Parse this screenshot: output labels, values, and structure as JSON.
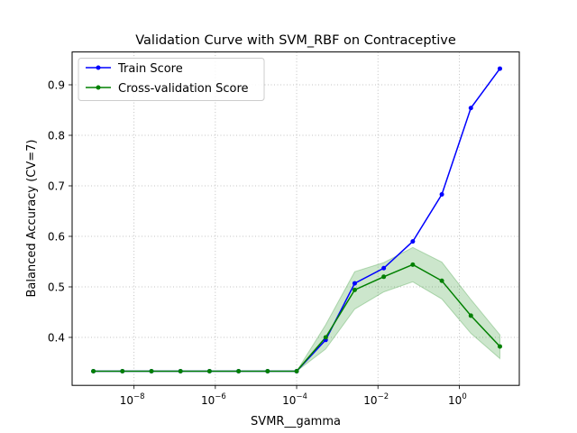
{
  "chart_data": {
    "type": "line",
    "title": "Validation Curve with SVM_RBF on Contraceptive",
    "xlabel": "SVMR__gamma",
    "ylabel": "Balanced Accuracy (CV=7)",
    "xscale": "log",
    "xlim": [
      3e-10,
      30
    ],
    "ylim": [
      0.305,
      0.965
    ],
    "grid": true,
    "grid_style": "dotted",
    "legend_position": "upper left",
    "x_tick_labels": [
      {
        "value": 1e-08,
        "base": "10",
        "exp": "−8"
      },
      {
        "value": 1e-06,
        "base": "10",
        "exp": "−6"
      },
      {
        "value": 0.0001,
        "base": "10",
        "exp": "−4"
      },
      {
        "value": 0.01,
        "base": "10",
        "exp": "−2"
      },
      {
        "value": 1,
        "base": "10",
        "exp": "0"
      }
    ],
    "y_ticks": [
      0.4,
      0.5,
      0.6,
      0.7,
      0.8,
      0.9
    ],
    "y_tick_labels": [
      "0.4",
      "0.5",
      "0.6",
      "0.7",
      "0.8",
      "0.9"
    ],
    "x": [
      1e-09,
      5.1795e-09,
      2.6827e-08,
      1.3895e-07,
      7.1969e-07,
      3.7276e-06,
      1.9307e-05,
      0.0001,
      0.00051795,
      0.0026827,
      0.013895,
      0.071969,
      0.37276,
      1.9307,
      10
    ],
    "series": [
      {
        "name": "Train Score",
        "color": "#0000ff",
        "values": [
          0.333,
          0.333,
          0.333,
          0.333,
          0.333,
          0.333,
          0.333,
          0.333,
          0.395,
          0.507,
          0.537,
          0.59,
          0.683,
          0.854,
          0.932
        ]
      },
      {
        "name": "Cross-validation Score",
        "color": "#008000",
        "band_color": "#008000",
        "values": [
          0.333,
          0.333,
          0.333,
          0.333,
          0.333,
          0.333,
          0.333,
          0.333,
          0.4,
          0.494,
          0.52,
          0.544,
          0.512,
          0.443,
          0.382
        ],
        "band_upper": [
          0.333,
          0.333,
          0.333,
          0.333,
          0.333,
          0.333,
          0.333,
          0.333,
          0.425,
          0.53,
          0.548,
          0.578,
          0.549,
          0.475,
          0.405
        ],
        "band_lower": [
          0.333,
          0.333,
          0.333,
          0.333,
          0.333,
          0.333,
          0.333,
          0.333,
          0.377,
          0.456,
          0.49,
          0.51,
          0.476,
          0.408,
          0.358
        ]
      }
    ]
  }
}
